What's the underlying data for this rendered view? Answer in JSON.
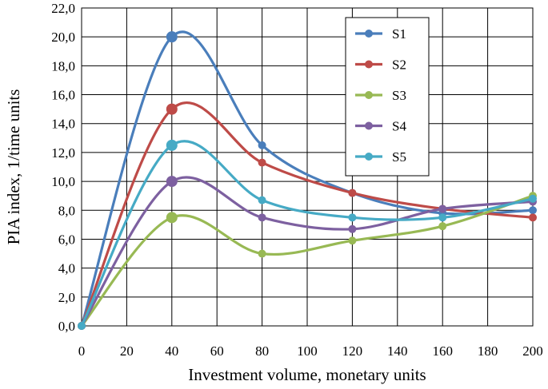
{
  "chart_data": {
    "type": "line",
    "title": "",
    "xlabel": "Investment volume, monetary units",
    "ylabel": "PIA index, 1/time units",
    "xlim": [
      0,
      200
    ],
    "ylim": [
      0,
      22
    ],
    "x_ticks": [
      "0",
      "20",
      "40",
      "60",
      "80",
      "100",
      "120",
      "140",
      "160",
      "180",
      "200"
    ],
    "y_ticks": [
      "0,0",
      "2,0",
      "4,0",
      "6,0",
      "8,0",
      "10,0",
      "12,0",
      "14,0",
      "16,0",
      "18,0",
      "20,0",
      "22,0"
    ],
    "grid": true,
    "legend_position": "top-right",
    "x": [
      0,
      40,
      80,
      120,
      160,
      200
    ],
    "series": [
      {
        "name": "S1",
        "color": "#4a7ebb",
        "values": [
          0,
          20.0,
          12.5,
          9.2,
          7.8,
          8.0
        ]
      },
      {
        "name": "S2",
        "color": "#be4b48",
        "values": [
          0,
          15.0,
          11.3,
          9.2,
          8.1,
          7.5
        ]
      },
      {
        "name": "S3",
        "color": "#98b954",
        "values": [
          0,
          7.5,
          5.0,
          5.9,
          6.9,
          9.0
        ]
      },
      {
        "name": "S4",
        "color": "#7d60a0",
        "values": [
          0,
          10.0,
          7.5,
          6.7,
          8.1,
          8.6
        ]
      },
      {
        "name": "S5",
        "color": "#46aac5",
        "values": [
          0,
          12.5,
          8.7,
          7.5,
          7.5,
          8.8
        ]
      }
    ]
  }
}
